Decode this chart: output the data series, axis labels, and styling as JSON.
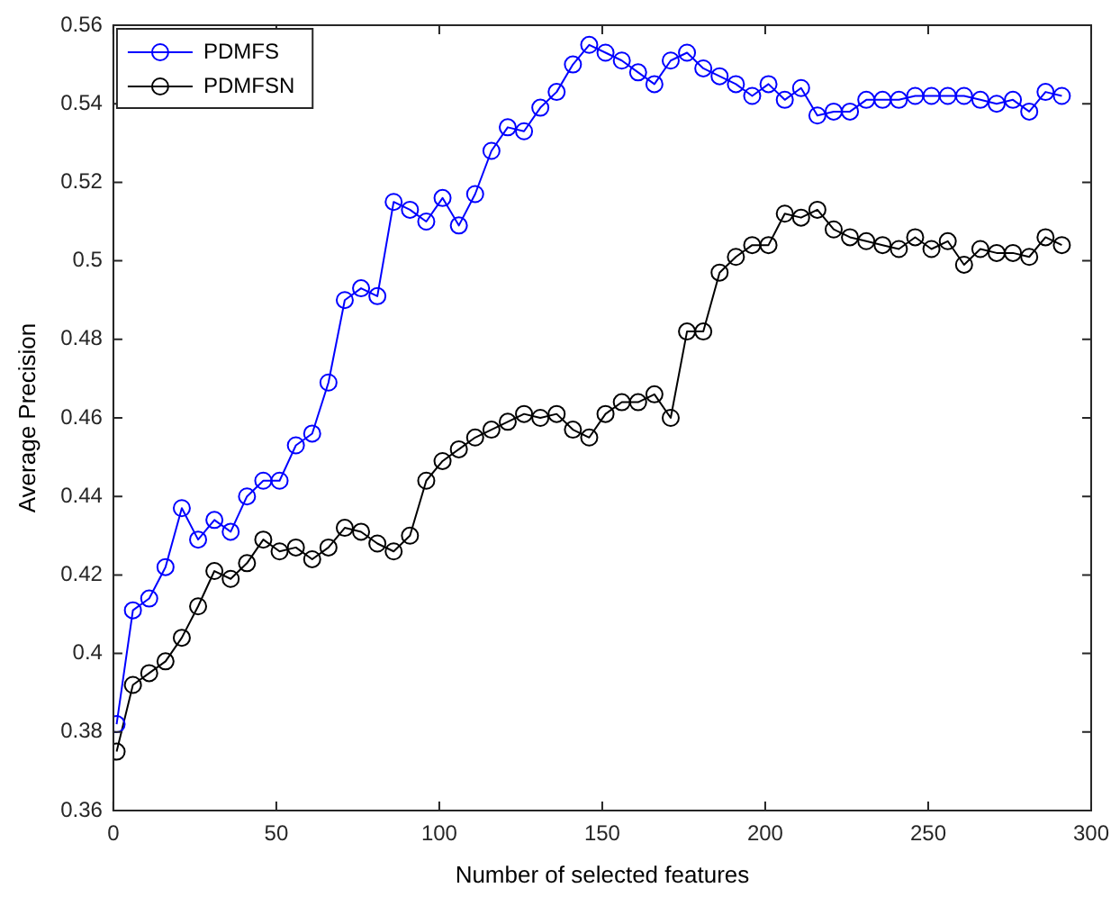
{
  "chart_data": {
    "type": "line",
    "xlabel": "Number of selected features",
    "ylabel": "Average Precision",
    "x": [
      1,
      6,
      11,
      16,
      21,
      26,
      31,
      36,
      41,
      46,
      51,
      56,
      61,
      66,
      71,
      76,
      81,
      86,
      91,
      96,
      101,
      106,
      111,
      116,
      121,
      126,
      131,
      136,
      141,
      146,
      151,
      156,
      161,
      166,
      171,
      176,
      181,
      186,
      191,
      196,
      201,
      206,
      211,
      216,
      221,
      226,
      231,
      236,
      241,
      246,
      251,
      256,
      261,
      266,
      271,
      276,
      281,
      286,
      291
    ],
    "series": [
      {
        "name": "PDMFS",
        "color": "#0000ff",
        "values": [
          0.382,
          0.411,
          0.414,
          0.422,
          0.437,
          0.429,
          0.434,
          0.431,
          0.44,
          0.444,
          0.444,
          0.453,
          0.456,
          0.469,
          0.49,
          0.493,
          0.491,
          0.515,
          0.513,
          0.51,
          0.516,
          0.509,
          0.517,
          0.528,
          0.534,
          0.533,
          0.539,
          0.543,
          0.55,
          0.555,
          0.553,
          0.551,
          0.548,
          0.545,
          0.551,
          0.553,
          0.549,
          0.547,
          0.545,
          0.542,
          0.545,
          0.541,
          0.544,
          0.537,
          0.538,
          0.538,
          0.541,
          0.541,
          0.541,
          0.542,
          0.542,
          0.542,
          0.542,
          0.541,
          0.54,
          0.541,
          0.538,
          0.543,
          0.542
        ]
      },
      {
        "name": "PDMFSN",
        "color": "#000000",
        "values": [
          0.375,
          0.392,
          0.395,
          0.398,
          0.404,
          0.412,
          0.421,
          0.419,
          0.423,
          0.429,
          0.426,
          0.427,
          0.424,
          0.427,
          0.432,
          0.431,
          0.428,
          0.426,
          0.43,
          0.444,
          0.449,
          0.452,
          0.455,
          0.457,
          0.459,
          0.461,
          0.46,
          0.461,
          0.457,
          0.455,
          0.461,
          0.464,
          0.464,
          0.466,
          0.46,
          0.482,
          0.482,
          0.497,
          0.501,
          0.504,
          0.504,
          0.512,
          0.511,
          0.513,
          0.508,
          0.506,
          0.505,
          0.504,
          0.503,
          0.506,
          0.503,
          0.505,
          0.499,
          0.503,
          0.502,
          0.502,
          0.501,
          0.506,
          0.504
        ]
      }
    ],
    "xlim": [
      0,
      300
    ],
    "xticks": [
      0,
      50,
      100,
      150,
      200,
      250,
      300
    ],
    "ylim": [
      0.36,
      0.56
    ],
    "yticks": [
      0.36,
      0.38,
      0.4,
      0.42,
      0.44,
      0.46,
      0.48,
      0.5,
      0.52,
      0.54,
      0.56
    ],
    "grid": false,
    "legend": "top left",
    "marker": "circle",
    "line_style": "solid"
  }
}
